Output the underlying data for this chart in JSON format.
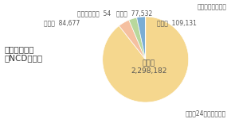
{
  "title_left": "【貯金残高】\n（NCD含む）",
  "unit_label": "（単位：百万円）",
  "footer_label": "（平成24年度末現在）",
  "slices": [
    {
      "label": "正会員",
      "value": 2298182,
      "color": "#F5D78E"
    },
    {
      "label": "その他",
      "value": 109131,
      "color": "#F5C0A0"
    },
    {
      "label": "地公体",
      "value": 77532,
      "color": "#B8D89C"
    },
    {
      "label": "准会員",
      "value": 84677,
      "color": "#7AADD4"
    },
    {
      "label": "会員の組合員",
      "value": 54,
      "color": "#E87080"
    }
  ],
  "slice_label_正会員": "正会員\n2,298,182",
  "legend_fontsize": 5.5,
  "title_fontsize": 7.5,
  "unit_fontsize": 5.5,
  "footer_fontsize": 5.5,
  "bg_color": "#FFFFFF"
}
